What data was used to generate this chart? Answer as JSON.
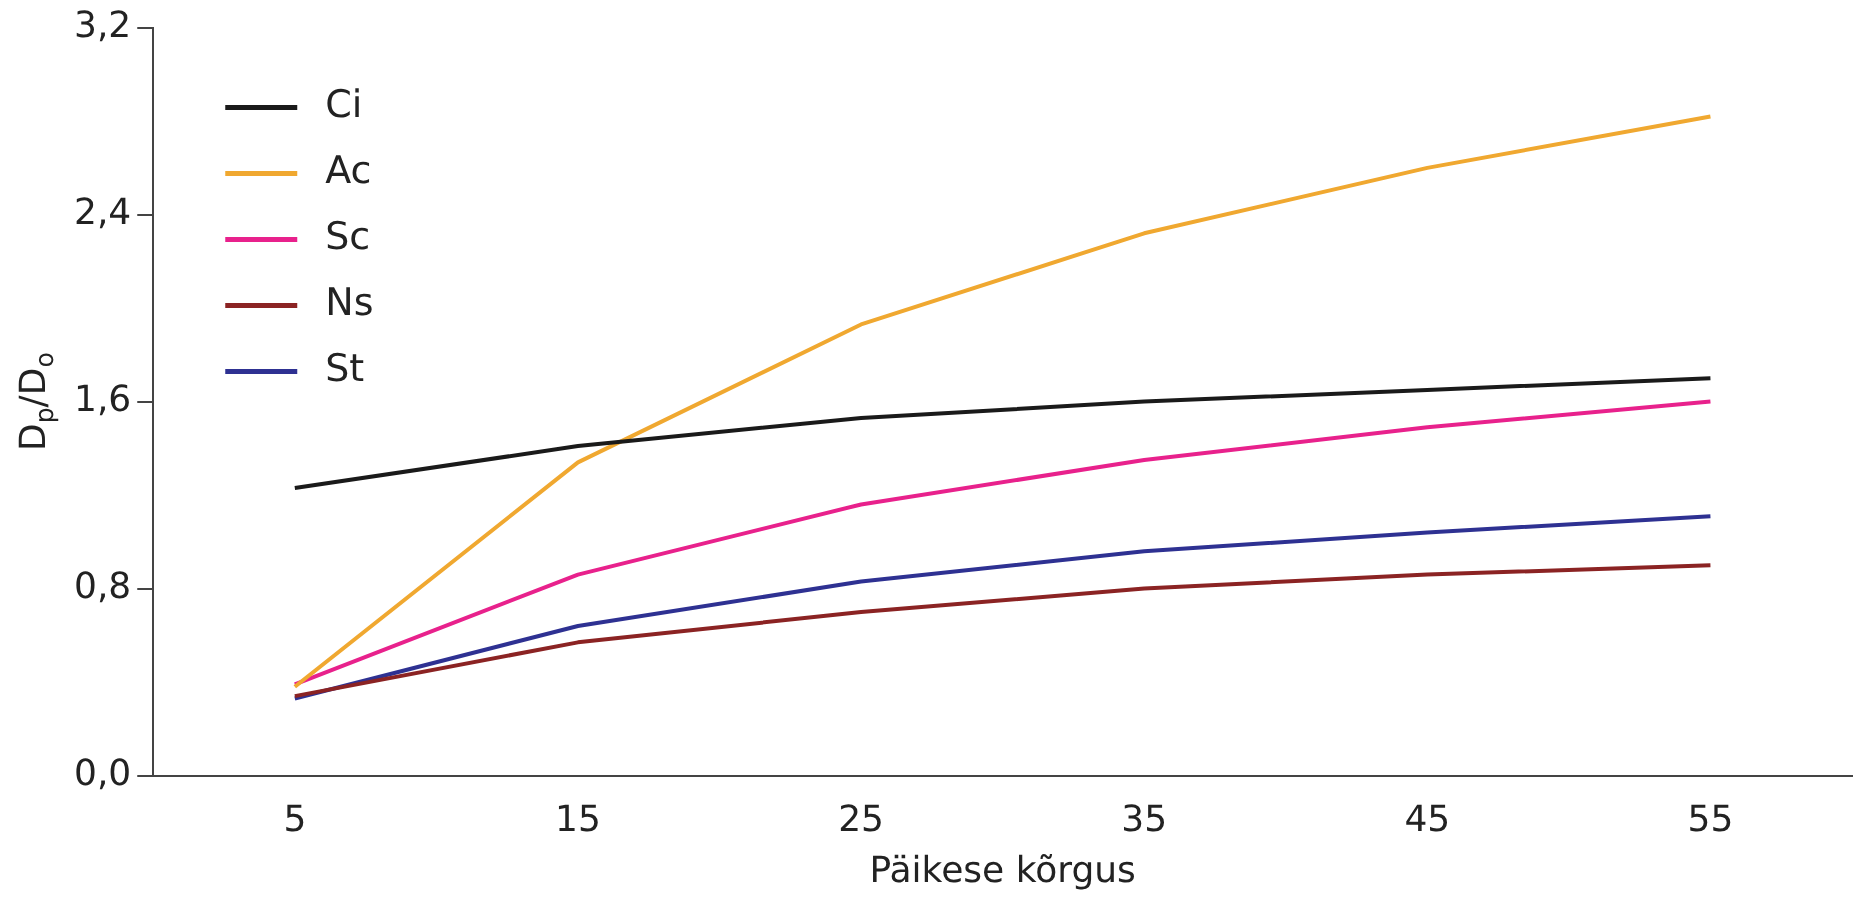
{
  "chart_data": {
    "type": "line",
    "xlabel": "Päikese kõrgus",
    "ylabel": "D$_{p}$/D$_{o}$",
    "categories": [
      "5",
      "15",
      "25",
      "35",
      "45",
      "55"
    ],
    "series": [
      {
        "name": "Ci",
        "color": "#1a1a1a",
        "values": [
          1.23,
          1.41,
          1.53,
          1.6,
          1.65,
          1.7
        ]
      },
      {
        "name": "Ac",
        "color": "#f0a830",
        "values": [
          0.38,
          1.34,
          1.93,
          2.32,
          2.6,
          2.82
        ]
      },
      {
        "name": "Sc",
        "color": "#e8218c",
        "values": [
          0.39,
          0.86,
          1.16,
          1.35,
          1.49,
          1.6
        ]
      },
      {
        "name": "Ns",
        "color": "#8b2323",
        "values": [
          0.34,
          0.57,
          0.7,
          0.8,
          0.86,
          0.9
        ]
      },
      {
        "name": "St",
        "color": "#2e3192",
        "values": [
          0.33,
          0.64,
          0.83,
          0.96,
          1.04,
          1.11
        ]
      }
    ],
    "ylim": [
      0,
      3.2
    ],
    "yticks": [
      {
        "value": 0,
        "label": "0,0"
      },
      {
        "value": 0.8,
        "label": "0,8"
      },
      {
        "value": 1.6,
        "label": "1,6"
      },
      {
        "value": 2.4,
        "label": "2,4"
      },
      {
        "value": 3.2,
        "label": "3,2"
      }
    ],
    "grid": false,
    "legend": "top left",
    "marker": "none",
    "line_style": "solid"
  }
}
